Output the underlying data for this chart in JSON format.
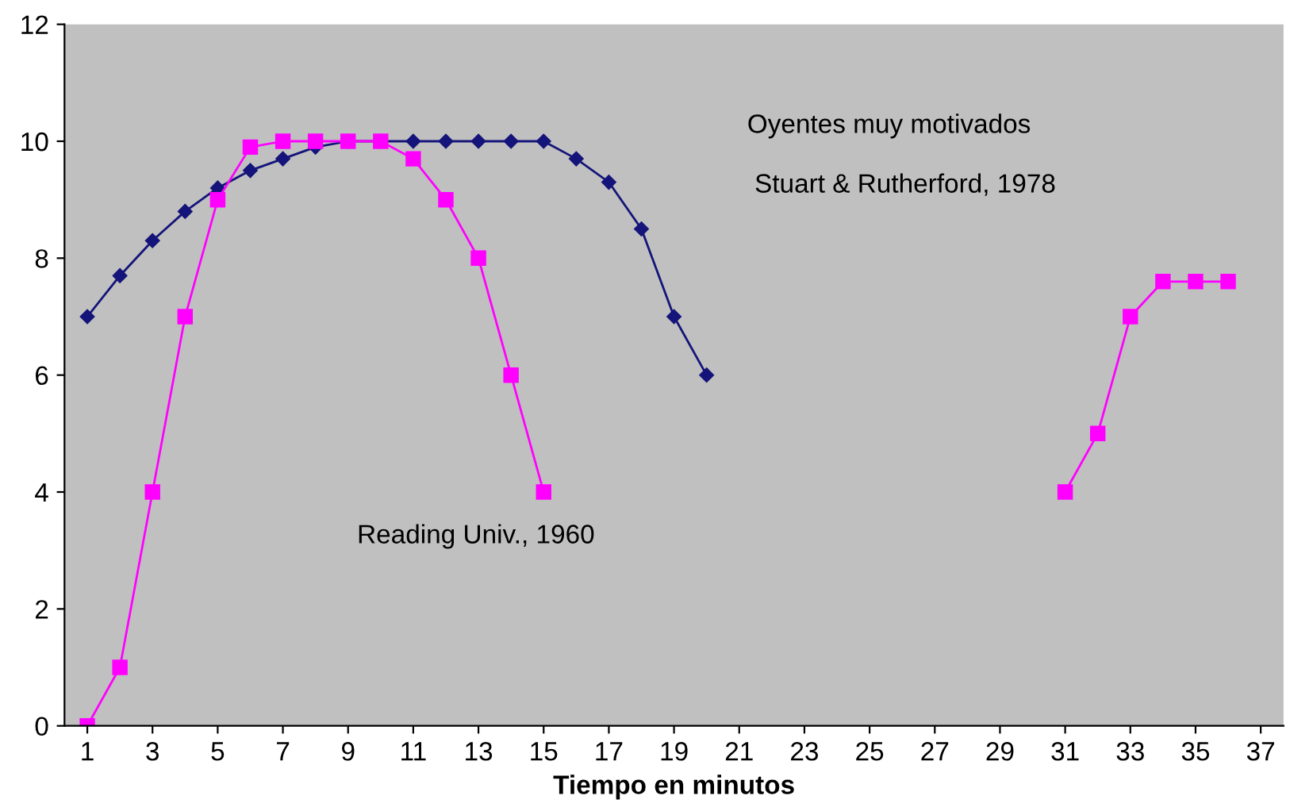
{
  "chart_data": {
    "type": "line",
    "xlabel": "Tiempo en minutos",
    "xlim": [
      0.3,
      37.7
    ],
    "xticks": [
      1,
      3,
      5,
      7,
      9,
      11,
      13,
      15,
      17,
      19,
      21,
      23,
      25,
      27,
      29,
      31,
      33,
      35,
      37
    ],
    "ylim": [
      0,
      12
    ],
    "yticks": [
      0,
      2,
      4,
      6,
      8,
      10,
      12
    ],
    "grid": false,
    "legend": false,
    "series": [
      {
        "color": "#14147a",
        "marker": "diamond",
        "x": [
          1,
          2,
          3,
          4,
          5,
          6,
          7,
          8,
          9,
          10,
          11,
          12,
          13,
          14,
          15,
          16,
          17,
          18,
          19,
          20
        ],
        "values": [
          7,
          7.7,
          8.3,
          8.8,
          9.2,
          9.5,
          9.7,
          9.9,
          10,
          10,
          10,
          10,
          10,
          10,
          10,
          9.7,
          9.3,
          8.5,
          7,
          6
        ]
      },
      {
        "color": "#ff00ff",
        "marker": "square",
        "x": [
          1,
          2,
          3,
          4,
          5,
          6,
          7,
          8,
          9,
          10,
          11,
          12,
          13,
          14,
          15,
          16,
          31,
          32,
          33,
          34,
          35,
          36
        ],
        "values": [
          0,
          1,
          4,
          7,
          9,
          9.9,
          10,
          10,
          10,
          10,
          9.7,
          9,
          8,
          6,
          4,
          null,
          4,
          5,
          7,
          7.6,
          7.6,
          7.6
        ]
      }
    ],
    "annotations": [
      "Oyentes muy motivados",
      " Stuart & Rutherford, 1978",
      "Reading Univ., 1960"
    ]
  }
}
